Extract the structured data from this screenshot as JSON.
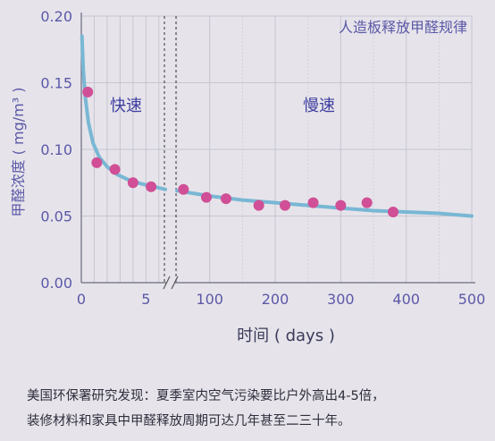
{
  "chart_data": {
    "type": "line+scatter",
    "title": "人造板释放甲醛规律",
    "xlabel": "时间 ( days )",
    "ylabel": "甲醛浓度 ( mg/m³ )",
    "ylim": [
      0,
      0.2
    ],
    "y_ticks": [
      "0.00",
      "0.05",
      "0.10",
      "0.15",
      "0.20"
    ],
    "x_ticks_left": [
      "0",
      "5"
    ],
    "x_ticks_right": [
      "100",
      "200",
      "300",
      "400",
      "500"
    ],
    "x_broken_axis": true,
    "left_segment_xlim": [
      0,
      6.5
    ],
    "right_segment_xlim": [
      50,
      500
    ],
    "grid": true,
    "region_labels": [
      "快速",
      "慢速"
    ],
    "points_left": [
      {
        "x": 0.5,
        "y": 0.143
      },
      {
        "x": 1.2,
        "y": 0.09
      },
      {
        "x": 2.6,
        "y": 0.085
      },
      {
        "x": 4.0,
        "y": 0.075
      },
      {
        "x": 5.4,
        "y": 0.072
      }
    ],
    "points_right": [
      {
        "x": 60,
        "y": 0.07
      },
      {
        "x": 95,
        "y": 0.064
      },
      {
        "x": 125,
        "y": 0.063
      },
      {
        "x": 175,
        "y": 0.058
      },
      {
        "x": 215,
        "y": 0.058
      },
      {
        "x": 258,
        "y": 0.06
      },
      {
        "x": 300,
        "y": 0.058
      },
      {
        "x": 340,
        "y": 0.06
      },
      {
        "x": 380,
        "y": 0.053
      }
    ],
    "curve_left": [
      {
        "x": 0.05,
        "y": 0.185
      },
      {
        "x": 0.15,
        "y": 0.16
      },
      {
        "x": 0.3,
        "y": 0.14
      },
      {
        "x": 0.55,
        "y": 0.12
      },
      {
        "x": 0.9,
        "y": 0.105
      },
      {
        "x": 1.4,
        "y": 0.094
      },
      {
        "x": 2.0,
        "y": 0.087
      },
      {
        "x": 2.8,
        "y": 0.081
      },
      {
        "x": 3.7,
        "y": 0.077
      },
      {
        "x": 4.7,
        "y": 0.074
      },
      {
        "x": 5.6,
        "y": 0.072
      },
      {
        "x": 6.5,
        "y": 0.07
      }
    ],
    "curve_right": [
      {
        "x": 50,
        "y": 0.069
      },
      {
        "x": 100,
        "y": 0.065
      },
      {
        "x": 150,
        "y": 0.062
      },
      {
        "x": 200,
        "y": 0.06
      },
      {
        "x": 250,
        "y": 0.058
      },
      {
        "x": 300,
        "y": 0.056
      },
      {
        "x": 350,
        "y": 0.054
      },
      {
        "x": 400,
        "y": 0.053
      },
      {
        "x": 450,
        "y": 0.052
      },
      {
        "x": 500,
        "y": 0.05
      }
    ],
    "colors": {
      "curve": "#79b7d4",
      "points": "#d04f96",
      "axis_text": "#5b58a8",
      "grid": "#c7c5d2",
      "title": "#5a58a6",
      "region": "#3f3ea0"
    }
  },
  "notes": {
    "line1": "美国环保署研究发现：夏季室内空气污染要比户外高出4-5倍，",
    "line2": "装修材料和家具中甲醛释放周期可达几年甚至二三十年。"
  }
}
